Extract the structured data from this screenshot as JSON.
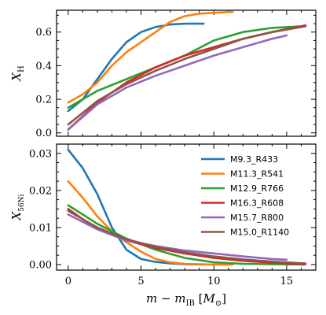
{
  "chart_data": [
    {
      "type": "line",
      "ylabel": "X_H",
      "ylabel_main": "X",
      "ylabel_sub": "H",
      "xlim": [
        -0.8,
        17
      ],
      "ylim": [
        -0.02,
        0.73
      ],
      "yticks": [
        0.0,
        0.2,
        0.4,
        0.6
      ],
      "ytick_labels": [
        "0.0",
        "0.2",
        "0.4",
        "0.6"
      ],
      "xticks": [
        0,
        5,
        10,
        15
      ],
      "series": [
        {
          "name": "M9.3_R433",
          "color": "#1f77b4",
          "x": [
            0,
            1,
            2,
            3,
            4,
            5,
            6,
            7,
            8,
            9.3
          ],
          "y": [
            0.13,
            0.2,
            0.32,
            0.44,
            0.54,
            0.6,
            0.63,
            0.645,
            0.65,
            0.65
          ]
        },
        {
          "name": "M11.3_R541",
          "color": "#ff7f0e",
          "x": [
            0,
            1,
            2,
            3,
            4,
            5,
            6,
            7,
            8,
            9,
            10,
            11.3
          ],
          "y": [
            0.18,
            0.23,
            0.3,
            0.4,
            0.48,
            0.54,
            0.6,
            0.66,
            0.695,
            0.71,
            0.715,
            0.72
          ]
        },
        {
          "name": "M12.9_R766",
          "color": "#2ca02c",
          "x": [
            0,
            2,
            4,
            6,
            8,
            10,
            12,
            14,
            16.2
          ],
          "y": [
            0.15,
            0.25,
            0.32,
            0.39,
            0.46,
            0.55,
            0.6,
            0.625,
            0.635
          ]
        },
        {
          "name": "M16.3_R608",
          "color": "#d62728",
          "x": [
            0,
            2,
            4,
            6,
            8,
            10,
            12,
            14,
            16.3
          ],
          "y": [
            0.02,
            0.18,
            0.3,
            0.39,
            0.46,
            0.51,
            0.56,
            0.6,
            0.64
          ]
        },
        {
          "name": "M15.7_R800",
          "color": "#9467bd",
          "x": [
            0,
            2,
            4,
            6,
            8,
            10,
            12,
            14,
            15.0
          ],
          "y": [
            0.02,
            0.17,
            0.27,
            0.34,
            0.4,
            0.46,
            0.51,
            0.56,
            0.58
          ]
        },
        {
          "name": "M15.0_R1140",
          "color": "#8c564b",
          "x": [
            0,
            2,
            4,
            6,
            8,
            10,
            12,
            14,
            16.3
          ],
          "y": [
            0.05,
            0.19,
            0.29,
            0.37,
            0.44,
            0.5,
            0.56,
            0.6,
            0.635
          ]
        }
      ]
    },
    {
      "type": "line",
      "ylabel": "X_56Ni",
      "ylabel_main": "X",
      "ylabel_sub": "56",
      "ylabel_sub2": "Ni",
      "xlabel": "m − m_IB [M_⊙]",
      "xlabel_m": "m",
      "xlabel_minus": " − ",
      "xlabel_m2": "m",
      "xlabel_sub": "IB",
      "xlabel_unit_open": " [",
      "xlabel_unit_M": "M",
      "xlabel_unit_sub": "⊙",
      "xlabel_unit_close": "]",
      "xlim": [
        -0.8,
        17
      ],
      "ylim": [
        -0.0015,
        0.0325
      ],
      "yticks": [
        0.0,
        0.01,
        0.02,
        0.03
      ],
      "ytick_labels": [
        "0.00",
        "0.01",
        "0.02",
        "0.03"
      ],
      "xticks": [
        0,
        5,
        10,
        15
      ],
      "xtick_labels": [
        "0",
        "5",
        "10",
        "15"
      ],
      "legend_placement": "upper-right",
      "series": [
        {
          "name": "M9.3_R433",
          "color": "#1f77b4",
          "x": [
            0,
            1,
            2,
            3,
            4,
            5,
            6,
            7,
            8,
            9.3
          ],
          "y": [
            0.031,
            0.026,
            0.019,
            0.01,
            0.004,
            0.0015,
            0.0007,
            0.0003,
            0.0001,
            0.0
          ]
        },
        {
          "name": "M11.3_R541",
          "color": "#ff7f0e",
          "x": [
            0,
            1,
            2,
            3,
            4,
            5,
            6,
            7,
            8,
            9,
            10,
            11.3
          ],
          "y": [
            0.0225,
            0.018,
            0.013,
            0.009,
            0.006,
            0.0035,
            0.0015,
            0.0006,
            0.0002,
            0.0001,
            0.0,
            0.0
          ]
        },
        {
          "name": "M12.9_R766",
          "color": "#2ca02c",
          "x": [
            0,
            2,
            4,
            6,
            8,
            10,
            12,
            14,
            16.2
          ],
          "y": [
            0.016,
            0.011,
            0.007,
            0.004,
            0.0018,
            0.0006,
            0.0002,
            0.0001,
            0.0
          ]
        },
        {
          "name": "M16.3_R608",
          "color": "#d62728",
          "x": [
            0,
            2,
            4,
            6,
            8,
            10,
            12,
            14,
            16.3
          ],
          "y": [
            0.015,
            0.0095,
            0.0065,
            0.0045,
            0.003,
            0.0018,
            0.001,
            0.0005,
            0.0001
          ]
        },
        {
          "name": "M15.7_R800",
          "color": "#9467bd",
          "x": [
            0,
            2,
            4,
            6,
            8,
            10,
            12,
            14,
            15.0
          ],
          "y": [
            0.0135,
            0.0095,
            0.0065,
            0.005,
            0.0038,
            0.003,
            0.0022,
            0.0015,
            0.0013
          ]
        },
        {
          "name": "M15.0_R1140",
          "color": "#8c564b",
          "x": [
            0,
            2,
            4,
            6,
            8,
            10,
            12,
            14,
            16.3
          ],
          "y": [
            0.0145,
            0.01,
            0.0068,
            0.0048,
            0.0033,
            0.0022,
            0.0014,
            0.0008,
            0.0003
          ]
        }
      ]
    }
  ]
}
